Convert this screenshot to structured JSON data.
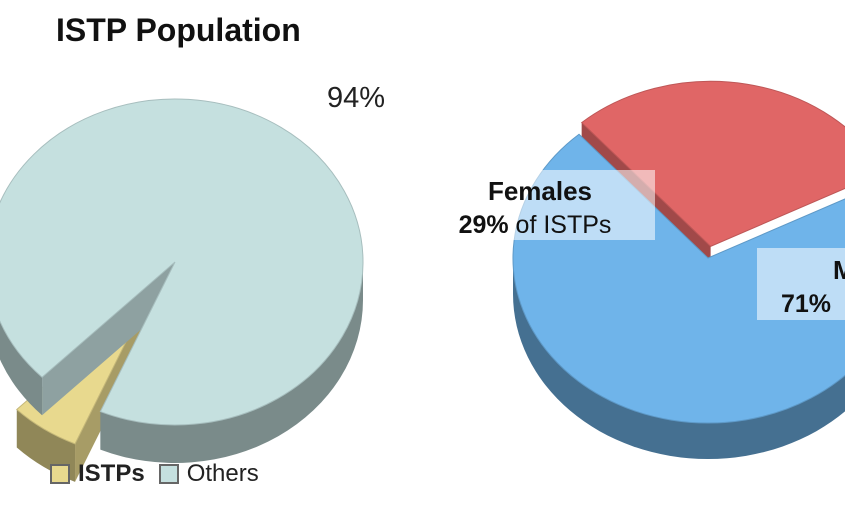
{
  "chart_data": [
    {
      "type": "pie",
      "title": "ISTP Population",
      "slices": [
        {
          "name": "ISTPs",
          "value": 6,
          "color": "#e8d98e"
        },
        {
          "name": "Others",
          "value": 94,
          "color": "#c5e0df"
        }
      ],
      "data_labels": [
        {
          "slice": "Others",
          "text": "94%"
        }
      ],
      "legend": {
        "placement": "bottom-left",
        "entries": [
          "ISTPs",
          "Others"
        ]
      }
    },
    {
      "type": "pie",
      "title": "",
      "slices": [
        {
          "name": "Females",
          "value": 29,
          "color": "#e06666"
        },
        {
          "name": "Males",
          "value": 71,
          "color": "#6fb4ea"
        }
      ],
      "data_labels": [
        {
          "slice": "Females",
          "name": "Females",
          "percent": "29%",
          "suffix": " of ISTPs"
        },
        {
          "slice": "Males",
          "name": "M",
          "percent": "71%",
          "suffix": ""
        }
      ]
    }
  ]
}
